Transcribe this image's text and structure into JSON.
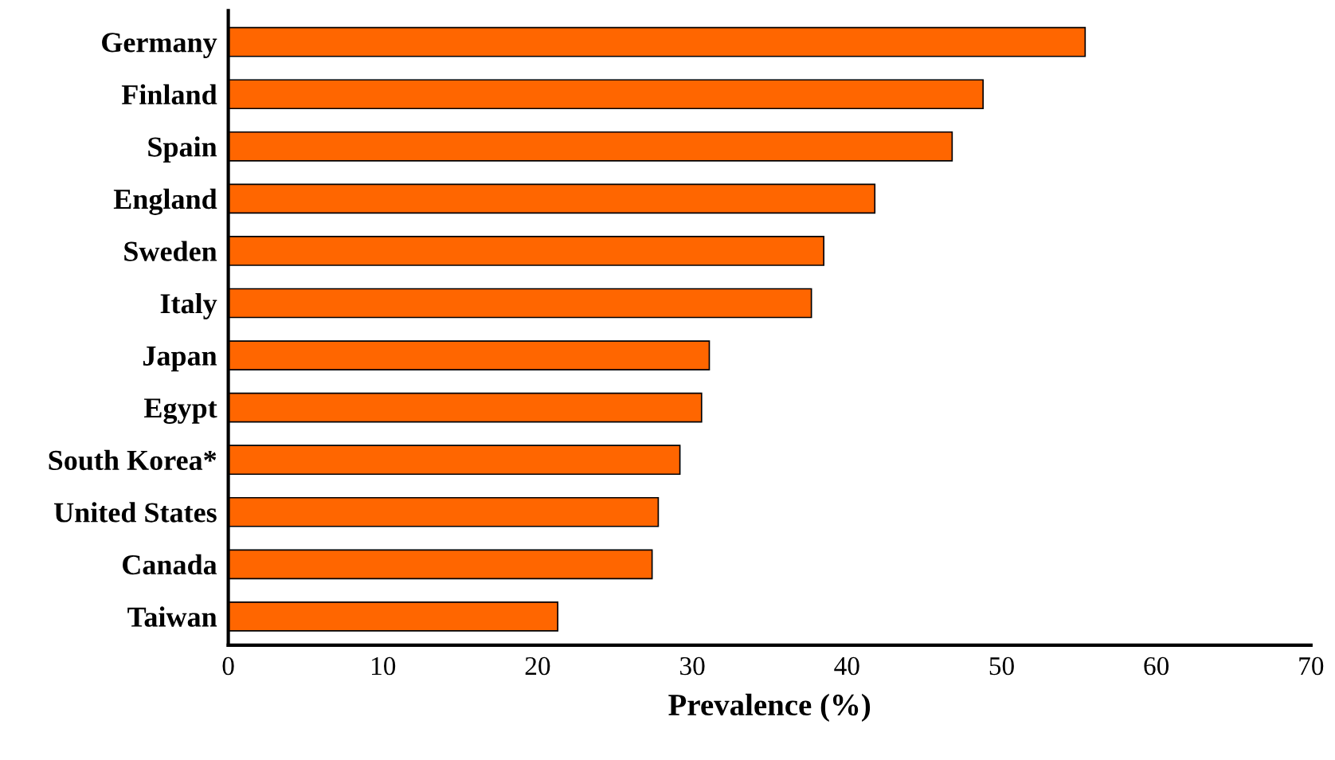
{
  "chart_data": {
    "type": "bar",
    "orientation": "horizontal",
    "xlabel": "Prevalence (%)",
    "categories": [
      "Germany",
      "Finland",
      "Spain",
      "England",
      "Sweden",
      "Italy",
      "Japan",
      "Egypt",
      "South Korea*",
      "United States",
      "Canada",
      "Taiwan"
    ],
    "values": [
      55.4,
      48.8,
      46.8,
      41.8,
      38.5,
      37.7,
      31.1,
      30.6,
      29.2,
      27.8,
      27.4,
      21.3
    ],
    "color": "#ff6600",
    "xlim": [
      0,
      70
    ],
    "xticks": [
      0,
      10,
      20,
      30,
      40,
      50,
      60,
      70
    ],
    "grid": false,
    "legend": false
  }
}
